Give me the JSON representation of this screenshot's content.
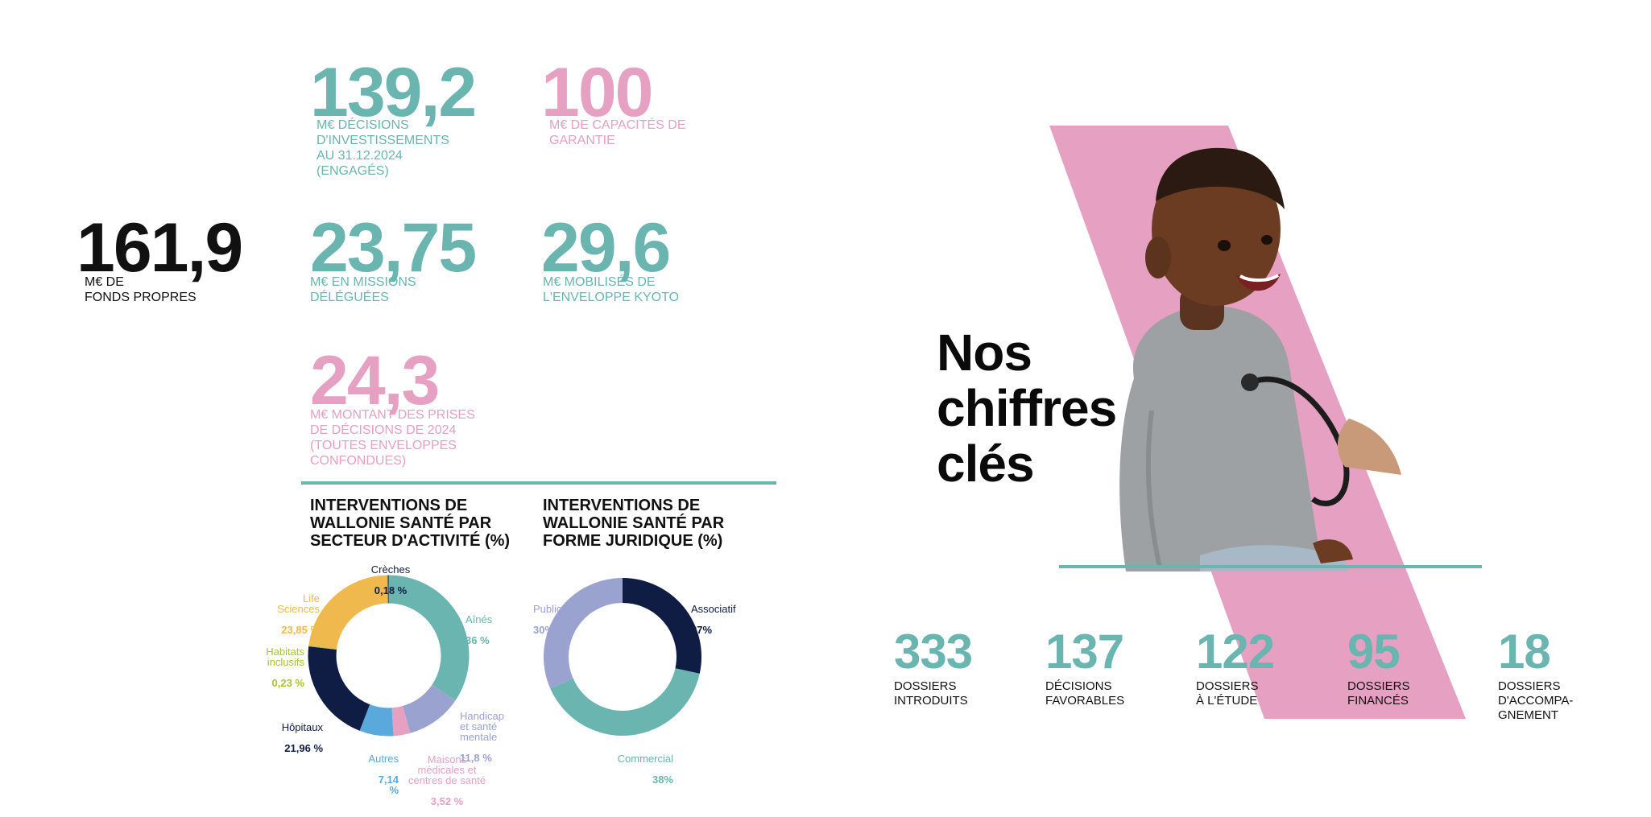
{
  "stats": {
    "investments": {
      "value": "139,2",
      "label": "M€ DÉCISIONS D'INVESTISSEMENTS AU 31.12.2024 (ENGAGÉS)"
    },
    "guarantee": {
      "value": "100",
      "label": "M€ DE CAPACITÉS DE GARANTIE"
    },
    "equity": {
      "value": "161,9",
      "label_line1": "M€ DE",
      "label_line2": "FONDS PROPRES"
    },
    "missions": {
      "value": "23,75",
      "label": "M€ EN MISSIONS DÉLÉGUÉES"
    },
    "kyoto": {
      "value": "29,6",
      "label": "M€ MOBILISÉS DE L'ENVELOPPE KYOTO"
    },
    "decisions2024": {
      "value": "24,3",
      "label": "M€ MONTANT DES PRISES DE DÉCISIONS DE 2024 (TOUTES ENVELOPPES CONFONDUES)"
    }
  },
  "headline": {
    "line1": "Nos",
    "line2": "chiffres",
    "line3": "clés"
  },
  "colors": {
    "teal": "#6ab5b0",
    "pink": "#e5a0c2",
    "navy": "#0f1d45",
    "yellow": "#f0b94d",
    "lavender": "#9aa2cf",
    "blue": "#5aa9dc",
    "olive": "#a8c23a"
  },
  "chart_data": [
    {
      "type": "pie",
      "title": "INTERVENTIONS DE\nWALLONIE SANTÉ PAR\nSECTEUR D'ACTIVITÉ (%)",
      "slices": [
        {
          "name": "Aînés",
          "value": 36,
          "display": "36 %",
          "color": "#6ab5b0"
        },
        {
          "name": "Handicap\net santé\nmentale",
          "value": 11.8,
          "display": "11,8 %",
          "color": "#9aa2cf"
        },
        {
          "name": "Maisons\nmédicales et\ncentres de santé",
          "value": 3.52,
          "display": "3,52 %",
          "color": "#e5a0c2"
        },
        {
          "name": "Autres",
          "value": 7.14,
          "display": "7,14 %",
          "color": "#5aa9dc"
        },
        {
          "name": "Hôpitaux",
          "value": 21.96,
          "display": "21,96 %",
          "color": "#0f1d45"
        },
        {
          "name": "Habitats\ninclusifs",
          "value": 0.23,
          "display": "0,23 %",
          "color": "#a8c23a"
        },
        {
          "name": "Life\nSciences",
          "value": 23.85,
          "display": "23,85 %",
          "color": "#f0b94d"
        },
        {
          "name": "Crèches",
          "value": 0.18,
          "display": "0,18 %",
          "color": "#0f1d45"
        }
      ]
    },
    {
      "type": "pie",
      "title": "INTERVENTIONS DE\nWALLONIE SANTÉ PAR\nFORME JURIDIQUE (%)",
      "slices": [
        {
          "name": "Associatif",
          "value": 27,
          "display": "27%",
          "color": "#0f1d45"
        },
        {
          "name": "Commercial",
          "value": 38,
          "display": "38%",
          "color": "#6ab5b0"
        },
        {
          "name": "Public",
          "value": 30,
          "display": "30%",
          "color": "#9aa2cf"
        }
      ]
    }
  ],
  "bottom_stats": [
    {
      "value": "333",
      "label": "DOSSIERS\nINTRODUITS"
    },
    {
      "value": "137",
      "label": "DÉCISIONS\nFAVORABLES"
    },
    {
      "value": "122",
      "label": "DOSSIERS\nÀ L'ÉTUDE"
    },
    {
      "value": "95",
      "label": "DOSSIERS\nFINANCÉS"
    },
    {
      "value": "18",
      "label": "DOSSIERS\nD'ACCOMPA-\nGNEMENT"
    }
  ]
}
